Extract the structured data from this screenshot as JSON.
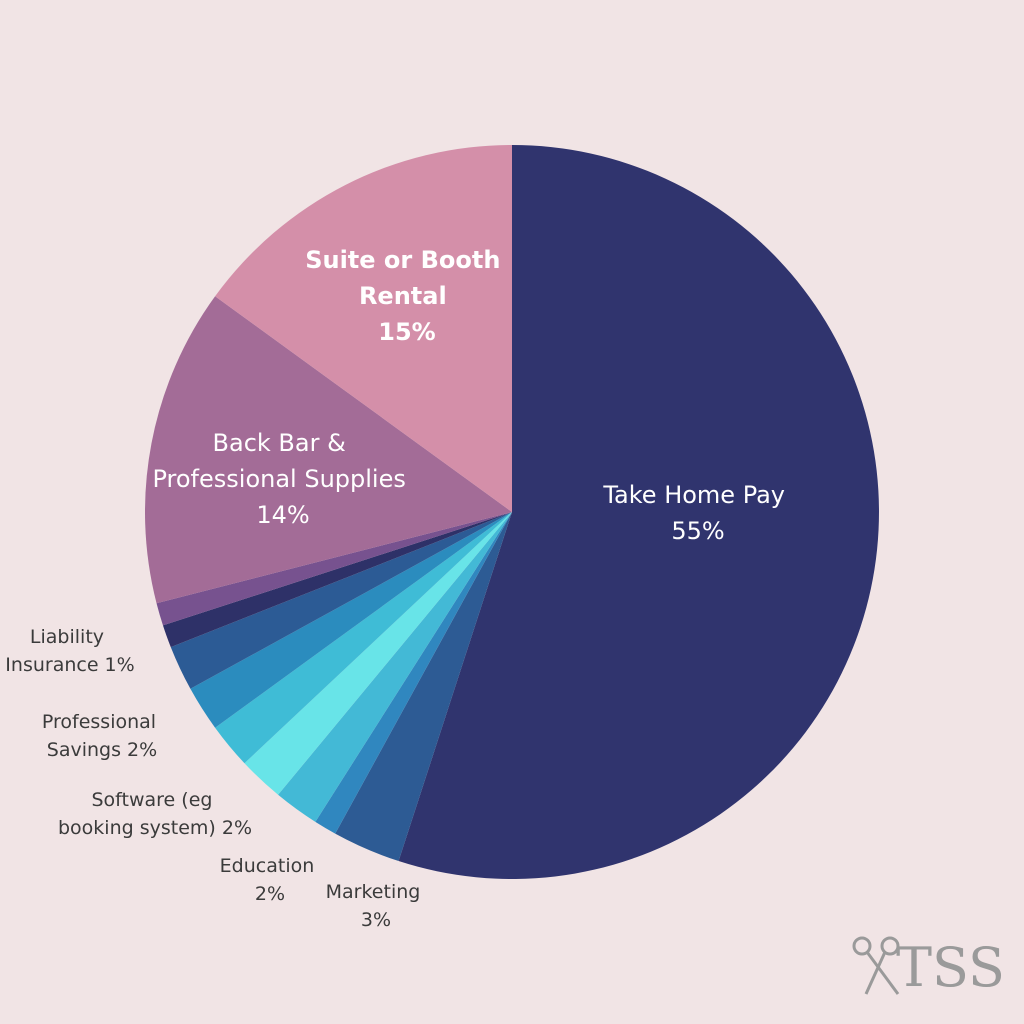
{
  "chart_data": {
    "type": "pie",
    "title": "",
    "slices": [
      {
        "name": "Take Home Pay",
        "value": 55,
        "value_label": "55%",
        "color": "#30346e"
      },
      {
        "name": "Marketing",
        "value": 3,
        "value_label": "3%",
        "color": "#2d5b94"
      },
      {
        "name": "",
        "value": 1,
        "value_label": "",
        "color": "#3087bf"
      },
      {
        "name": "",
        "value": 2,
        "value_label": "",
        "color": "#43b9d6"
      },
      {
        "name": "Education",
        "value": 2,
        "value_label": "2%",
        "color": "#68e4e8"
      },
      {
        "name": "Software (eg booking system)",
        "value": 2,
        "value_label": "2%",
        "color": "#3fbcd6"
      },
      {
        "name": "Professional Savings",
        "value": 2,
        "value_label": "2%",
        "color": "#2b8cbe"
      },
      {
        "name": "",
        "value": 2,
        "value_label": "",
        "color": "#2c5b95"
      },
      {
        "name": "Liability Insurance",
        "value": 1,
        "value_label": "1%",
        "color": "#2e3168"
      },
      {
        "name": "",
        "value": 1,
        "value_label": "",
        "color": "#77528f"
      },
      {
        "name": "Back Bar & Professional Supplies",
        "value": 14,
        "value_label": "14%",
        "color": "#a36c97"
      },
      {
        "name": "Suite or Booth Rental",
        "value": 15,
        "value_label": "15%",
        "color": "#d48fa9"
      }
    ],
    "start_angle_deg": 0,
    "direction": "clockwise"
  },
  "labels": {
    "take_home": [
      "Take Home Pay",
      "55%"
    ],
    "suite": [
      "Suite or Booth",
      "Rental",
      "15%"
    ],
    "backbar": [
      "Back Bar &",
      "Professional Supplies",
      "14%"
    ],
    "liability": [
      "Liability",
      "Insurance 1%"
    ],
    "savings": [
      "Professional",
      "Savings 2%"
    ],
    "software": [
      "Software (eg",
      "booking system) 2%"
    ],
    "education": [
      "Education",
      "2%"
    ],
    "marketing": [
      "Marketing",
      "3%"
    ]
  },
  "logo": {
    "text": "TSS",
    "icon": "scissors-icon"
  }
}
